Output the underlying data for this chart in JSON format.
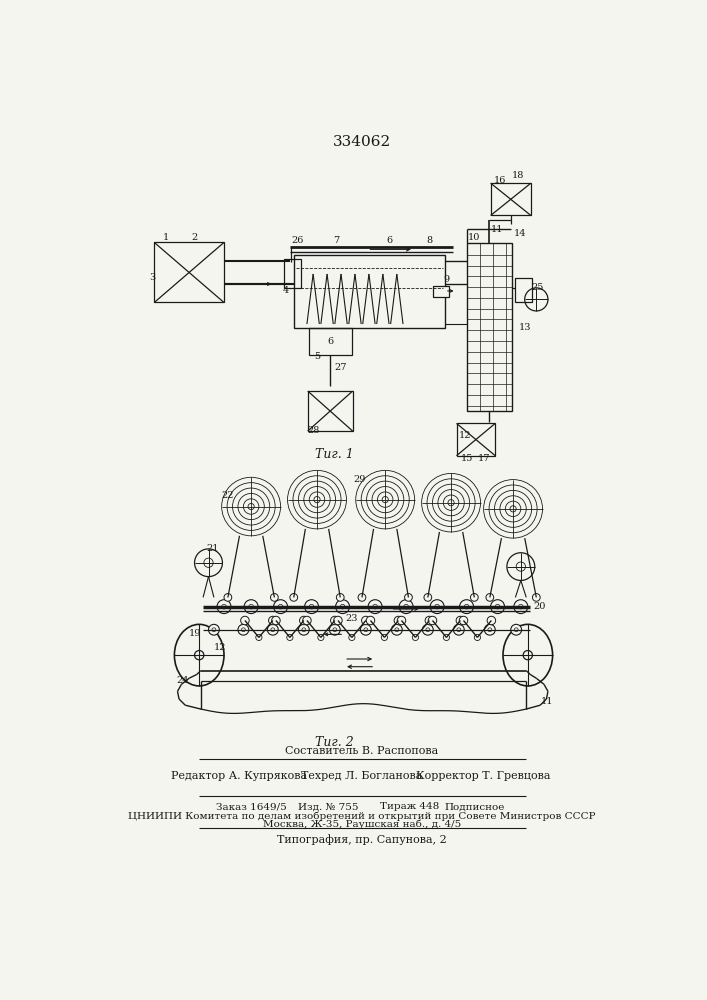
{
  "title": "334062",
  "fig1_caption": "Τиг. 1",
  "fig2_caption": "Τиг. 2",
  "compiler_line": "Составитель В. Распопова",
  "editor_line": "Редактор А. Купрякова",
  "techred_line": "Техред Л. Богланова",
  "corrector_line": "Корректор Т. Гревцова",
  "order_text": "Заказ 1649/5",
  "izd_text": "Изд. № 755",
  "tirazh_text": "Тираж 448",
  "podpisnoe_text": "Подписное",
  "tsniipi_line": "ЦНИИПИ Комитета по делам изобретений и открытий при Совете Министров СССР",
  "moscow_line": "Москва, Ж-35, Раушская наб., д. 4/5",
  "typography_line": "Типография, пр. Сапунова, 2",
  "line_color": "#1a1a1a",
  "bg_color": "#f5f5f0"
}
